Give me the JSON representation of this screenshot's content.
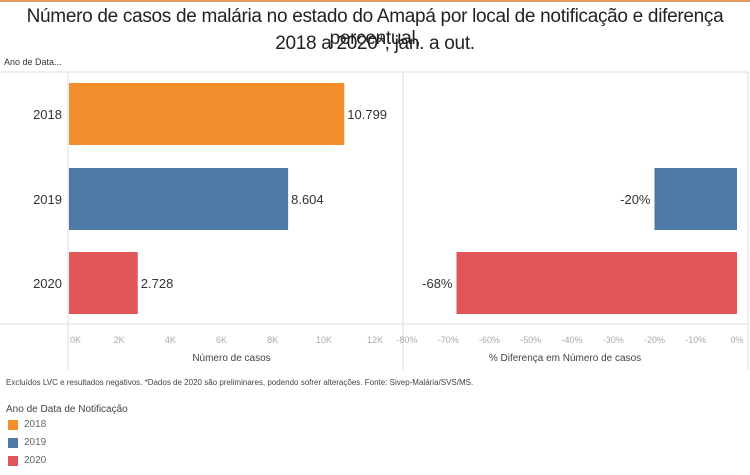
{
  "chart_data": [
    {
      "type": "bar",
      "orientation": "horizontal",
      "title": "Número de casos de malária no estado do Amapá por local de notificação e diferença percentual, 2018 a 2020*, jan. a out.",
      "row_header": "Ano de Data...",
      "categories": [
        "2018",
        "2019",
        "2020"
      ],
      "values": [
        10799,
        8604,
        2728
      ],
      "value_labels": [
        "10.799",
        "8.604",
        "2.728"
      ],
      "colors": [
        "#f28e2b",
        "#4e79a7",
        "#e15759"
      ],
      "xlabel": "Número de casos",
      "xlim": [
        0,
        12000
      ],
      "xticks": [
        0,
        2000,
        4000,
        6000,
        8000,
        10000,
        12000
      ],
      "xtick_labels": [
        "0K",
        "2K",
        "4K",
        "6K",
        "8K",
        "10K",
        "12K"
      ]
    },
    {
      "type": "bar",
      "orientation": "horizontal",
      "categories": [
        "2018",
        "2019",
        "2020"
      ],
      "values": [
        null,
        -20,
        -68
      ],
      "value_labels": [
        "",
        "-20%",
        "-68%"
      ],
      "colors": [
        "#f28e2b",
        "#4e79a7",
        "#e15759"
      ],
      "xlabel": "% Diferença em Número de casos",
      "xlim": [
        -80,
        0
      ],
      "xticks": [
        -80,
        -70,
        -60,
        -50,
        -40,
        -30,
        -20,
        -10,
        0
      ],
      "xtick_labels": [
        "-80%",
        "-70%",
        "-60%",
        "-50%",
        "-40%",
        "-30%",
        "-20%",
        "-10%",
        "0%"
      ]
    }
  ],
  "title_line1": "Número de casos de malária no estado do Amapá por local de notificação e diferença percentual,",
  "title_line2": "2018 a 2020*, jan. a out.",
  "row_header": "Ano de Data...",
  "footnote": "Excluídos LVC e resultados negativos. *Dados de 2020 são preliminares, podendo sofrer alterações. Fonte: Sivep-Malária/SVS/MS.",
  "legend": {
    "title": "Ano de Data de Notificação",
    "items": [
      {
        "label": "2018",
        "color": "#f28e2b"
      },
      {
        "label": "2019",
        "color": "#4e79a7"
      },
      {
        "label": "2020",
        "color": "#e15759"
      }
    ]
  }
}
